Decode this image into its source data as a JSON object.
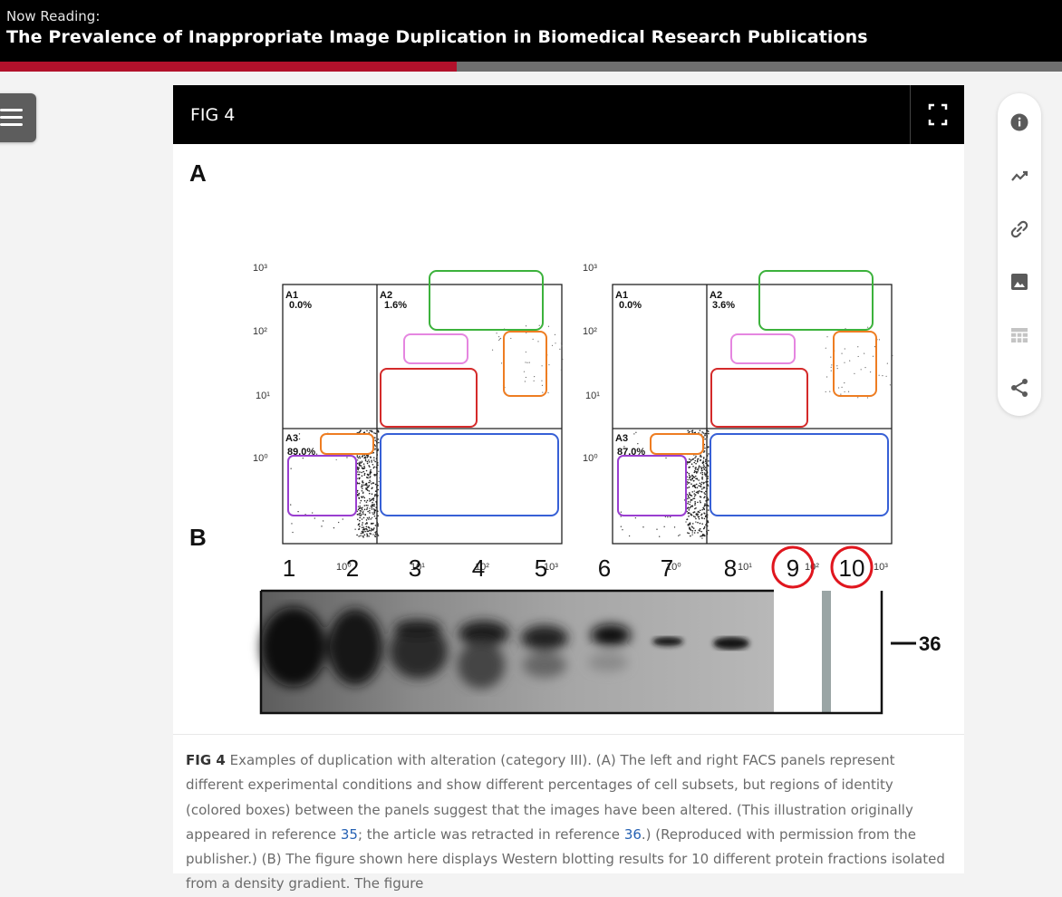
{
  "header": {
    "now_reading_label": "Now Reading:",
    "article_title": "The Prevalence of Inappropriate Image Duplication in Biomedical Research Publications",
    "progress_fraction": 0.43
  },
  "figure": {
    "label": "FIG 4",
    "panel_a_label": "A",
    "panel_b_label": "B",
    "facs_left": {
      "gate_labels": [
        "A1",
        "A2",
        "A3"
      ],
      "percentages": [
        "0.0%",
        "1.6%",
        "89.0%"
      ],
      "y_ticks": [
        "10³",
        "10²",
        "10¹",
        "10⁰"
      ],
      "x_ticks": [
        "10⁰",
        "10¹",
        "10²",
        "10³"
      ]
    },
    "facs_right": {
      "gate_labels": [
        "A1",
        "A2",
        "A3"
      ],
      "percentages": [
        "0.0%",
        "3.6%",
        "87.0%"
      ],
      "y_ticks": [
        "10³",
        "10²",
        "10¹",
        "10⁰"
      ],
      "x_ticks": [
        "10⁰",
        "10¹",
        "10²",
        "10³"
      ]
    },
    "lane_numbers": [
      "1",
      "2",
      "3",
      "4",
      "5",
      "6",
      "7",
      "8",
      "9",
      "10"
    ],
    "marker_label": "36",
    "caption": {
      "label": "FIG 4",
      "part1": "Examples of duplication with alteration (category III). (A) The left and right FACS panels represent different experimental conditions and show different percentages of cell subsets, but regions of identity (colored boxes) between the panels suggest that the images have been altered. (This illustration originally appeared in reference ",
      "ref1": "35",
      "part2": "; the article was retracted in reference ",
      "ref2": "36",
      "part3": ".) (Reproduced with permission from the publisher.) (B) The figure shown here displays Western blotting results for 10 different protein fractions isolated from a density gradient. The figure"
    }
  },
  "side_rail": {
    "icons": [
      "info-icon",
      "trending-icon",
      "link-icon",
      "image-icon",
      "table-icon",
      "share-icon"
    ]
  }
}
